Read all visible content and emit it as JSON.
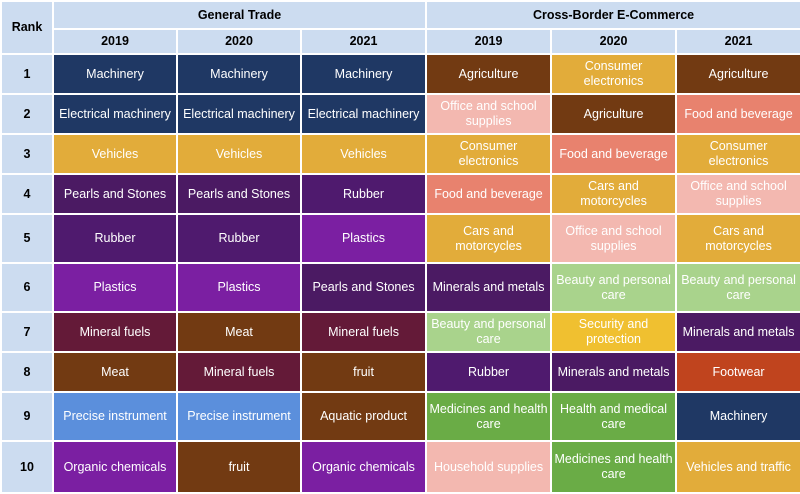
{
  "header": {
    "rank_label": "Rank",
    "group_general": "General Trade",
    "group_cbec": "Cross-Border E-Commerce",
    "years": [
      "2019",
      "2020",
      "2021",
      "2019",
      "2020",
      "2021"
    ]
  },
  "colors": {
    "header_bg": "#ccdcf0",
    "Machinery": "#1f3864",
    "Electrical machinery": "#1f3864",
    "Vehicles": "#e2ac3a",
    "Pearls and Stones": "#4b1a63",
    "Rubber": "#4f1a6e",
    "Plastics": "#7b1fa2",
    "Mineral fuels": "#641a38",
    "Meat": "#723a12",
    "fruit": "#723a12",
    "Precise instrument": "#5b8fdc",
    "Organic chemicals": "#7b1fa2",
    "Aquatic product": "#723a12",
    "Agriculture": "#723a12",
    "Consumer electronics": "#e2ac3a",
    "Office and school supplies": "#f3b8b0",
    "Food and beverage": "#e8826e",
    "Cars and motorcycles": "#e2ac3a",
    "Minerals and metals": "#4b1a63",
    "Beauty and personal care": "#a9d38c",
    "Security and protection": "#f0c030",
    "Footwear": "#c0441e",
    "Medicines and health care": "#6aac46",
    "Health and medical care": "#6aac46",
    "Household supplies": "#f3b8b0",
    "Vehicles and traffic": "#e2ac3a"
  },
  "rows": [
    {
      "rank": "1",
      "cells": [
        "Machinery",
        "Machinery",
        "Machinery",
        "Agriculture",
        "Consumer electronics",
        "Agriculture"
      ]
    },
    {
      "rank": "2",
      "cells": [
        "Electrical machinery",
        "Electrical machinery",
        "Electrical machinery",
        "Office and school supplies",
        "Agriculture",
        "Food and beverage"
      ]
    },
    {
      "rank": "3",
      "cells": [
        "Vehicles",
        "Vehicles",
        "Vehicles",
        "Consumer electronics",
        "Food and beverage",
        "Consumer electronics"
      ]
    },
    {
      "rank": "4",
      "cells": [
        "Pearls and Stones",
        "Pearls and Stones",
        "Rubber",
        "Food and beverage",
        "Cars and motorcycles",
        "Office and school supplies"
      ]
    },
    {
      "rank": "5",
      "cells": [
        "Rubber",
        "Rubber",
        "Plastics",
        "Cars and motorcycles",
        "Office and school supplies",
        "Cars and motorcycles"
      ]
    },
    {
      "rank": "6",
      "cells": [
        "Plastics",
        "Plastics",
        "Pearls and Stones",
        "Minerals and metals",
        "Beauty and personal care",
        "Beauty and personal care"
      ]
    },
    {
      "rank": "7",
      "cells": [
        "Mineral fuels",
        "Meat",
        "Mineral fuels",
        "Beauty and personal care",
        "Security and protection",
        "Minerals and metals"
      ]
    },
    {
      "rank": "8",
      "cells": [
        "Meat",
        "Mineral fuels",
        "fruit",
        "Rubber",
        "Minerals and metals",
        "Footwear"
      ]
    },
    {
      "rank": "9",
      "cells": [
        "Precise instrument",
        "Precise instrument",
        "Aquatic product",
        "Medicines and health care",
        "Health and medical care",
        "Machinery"
      ]
    },
    {
      "rank": "10",
      "cells": [
        "Organic chemicals",
        "fruit",
        "Organic chemicals",
        "Household supplies",
        "Medicines and health care",
        "Vehicles and traffic"
      ]
    }
  ]
}
